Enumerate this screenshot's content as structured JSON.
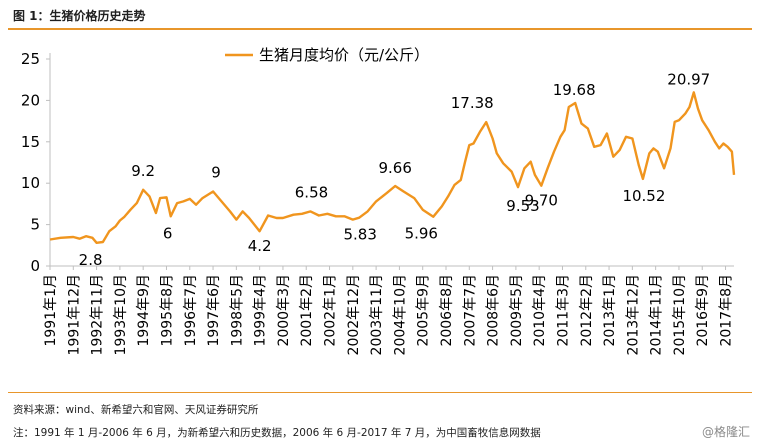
{
  "figure_title": "图 1：生猪价格历史走势",
  "footer": {
    "source": "资料来源：wind、新希望六和官网、天风证券研究所",
    "note": "注：1991 年 1 月-2006 年 6 月，为新希望六和历史数据，2006 年 6 月-2017 年 7 月，为中国畜牧信息网数据",
    "watermark": "格隆汇"
  },
  "colors": {
    "series": "#f0951e",
    "rule": "#e8962b",
    "axis": "#bfbfbf"
  },
  "chart_data": {
    "type": "line",
    "title": "",
    "xlabel": "",
    "ylabel": "",
    "ylim": [
      0,
      25
    ],
    "yticks": [
      0,
      5,
      10,
      15,
      20,
      25
    ],
    "grid": false,
    "legend_position": "top-center",
    "x_tick_labels": [
      "1991年1月",
      "1991年12月",
      "1992年11月",
      "1993年10月",
      "1994年9月",
      "1995年8月",
      "1996年7月",
      "1997年6月",
      "1998年5月",
      "1999年4月",
      "2000年3月",
      "2001年2月",
      "2002年1月",
      "2002年12月",
      "2003年11月",
      "2004年10月",
      "2005年9月",
      "2006年8月",
      "2007年7月",
      "2008年6月",
      "2009年5月",
      "2010年4月",
      "2011年3月",
      "2012年2月",
      "2013年1月",
      "2013年12月",
      "2014年11月",
      "2015年10月",
      "2016年9月",
      "2017年8月"
    ],
    "series": [
      {
        "name": "生猪月度均价（元/公斤）",
        "points": [
          [
            "1991-01",
            3.2
          ],
          [
            "1991-06",
            3.4
          ],
          [
            "1991-12",
            3.5
          ],
          [
            "1992-03",
            3.3
          ],
          [
            "1992-06",
            3.6
          ],
          [
            "1992-09",
            3.4
          ],
          [
            "1992-11",
            2.8
          ],
          [
            "1993-02",
            2.9
          ],
          [
            "1993-05",
            4.2
          ],
          [
            "1993-08",
            4.8
          ],
          [
            "1993-10",
            5.5
          ],
          [
            "1993-12",
            5.9
          ],
          [
            "1994-03",
            6.8
          ],
          [
            "1994-06",
            7.6
          ],
          [
            "1994-09",
            9.2
          ],
          [
            "1994-12",
            8.4
          ],
          [
            "1995-03",
            6.4
          ],
          [
            "1995-05",
            8.2
          ],
          [
            "1995-08",
            8.3
          ],
          [
            "1995-10",
            6.0
          ],
          [
            "1996-01",
            7.6
          ],
          [
            "1996-04",
            7.8
          ],
          [
            "1996-07",
            8.1
          ],
          [
            "1996-10",
            7.4
          ],
          [
            "1997-01",
            8.2
          ],
          [
            "1997-06",
            9.0
          ],
          [
            "1997-10",
            7.8
          ],
          [
            "1998-02",
            6.6
          ],
          [
            "1998-05",
            5.6
          ],
          [
            "1998-08",
            6.6
          ],
          [
            "1998-11",
            5.8
          ],
          [
            "1999-04",
            4.2
          ],
          [
            "1999-08",
            6.1
          ],
          [
            "1999-12",
            5.8
          ],
          [
            "2000-03",
            5.8
          ],
          [
            "2000-08",
            6.2
          ],
          [
            "2000-12",
            6.3
          ],
          [
            "2001-04",
            6.6
          ],
          [
            "2001-08",
            6.1
          ],
          [
            "2001-12",
            6.3
          ],
          [
            "2002-04",
            6.0
          ],
          [
            "2002-08",
            6.0
          ],
          [
            "2002-12",
            5.6
          ],
          [
            "2003-03",
            5.83
          ],
          [
            "2003-07",
            6.6
          ],
          [
            "2003-11",
            7.8
          ],
          [
            "2004-04",
            8.8
          ],
          [
            "2004-08",
            9.66
          ],
          [
            "2004-12",
            9.0
          ],
          [
            "2005-05",
            8.2
          ],
          [
            "2005-09",
            6.8
          ],
          [
            "2006-02",
            5.96
          ],
          [
            "2006-06",
            7.2
          ],
          [
            "2006-09",
            8.4
          ],
          [
            "2006-12",
            9.8
          ],
          [
            "2007-03",
            10.4
          ],
          [
            "2007-05",
            12.6
          ],
          [
            "2007-07",
            14.6
          ],
          [
            "2007-09",
            14.8
          ],
          [
            "2007-12",
            16.2
          ],
          [
            "2008-03",
            17.38
          ],
          [
            "2008-06",
            15.4
          ],
          [
            "2008-08",
            13.6
          ],
          [
            "2008-11",
            12.4
          ],
          [
            "2009-03",
            11.4
          ],
          [
            "2009-06",
            9.53
          ],
          [
            "2009-09",
            11.8
          ],
          [
            "2009-12",
            12.6
          ],
          [
            "2010-02",
            11.0
          ],
          [
            "2010-05",
            9.7
          ],
          [
            "2010-08",
            11.8
          ],
          [
            "2010-11",
            13.8
          ],
          [
            "2011-02",
            15.6
          ],
          [
            "2011-04",
            16.4
          ],
          [
            "2011-06",
            19.2
          ],
          [
            "2011-09",
            19.68
          ],
          [
            "2011-12",
            17.2
          ],
          [
            "2012-03",
            16.6
          ],
          [
            "2012-06",
            14.4
          ],
          [
            "2012-09",
            14.6
          ],
          [
            "2012-12",
            16.0
          ],
          [
            "2013-03",
            13.2
          ],
          [
            "2013-06",
            14.0
          ],
          [
            "2013-09",
            15.6
          ],
          [
            "2013-12",
            15.4
          ],
          [
            "2014-03",
            12.2
          ],
          [
            "2014-05",
            10.52
          ],
          [
            "2014-08",
            13.6
          ],
          [
            "2014-10",
            14.2
          ],
          [
            "2014-12",
            13.8
          ],
          [
            "2015-03",
            11.8
          ],
          [
            "2015-06",
            14.2
          ],
          [
            "2015-08",
            17.4
          ],
          [
            "2015-10",
            17.6
          ],
          [
            "2016-01",
            18.4
          ],
          [
            "2016-03",
            19.2
          ],
          [
            "2016-05",
            20.97
          ],
          [
            "2016-07",
            19.0
          ],
          [
            "2016-09",
            17.6
          ],
          [
            "2016-12",
            16.4
          ],
          [
            "2017-03",
            15.0
          ],
          [
            "2017-05",
            14.2
          ],
          [
            "2017-07",
            14.8
          ],
          [
            "2017-09",
            14.4
          ],
          [
            "2017-11",
            13.8
          ],
          [
            "2017-12",
            11.0
          ]
        ]
      }
    ],
    "annotations": [
      {
        "text": "9.2",
        "x": "1994-09",
        "y": 9.2
      },
      {
        "text": "9",
        "x": "1997-06",
        "y": 9.0
      },
      {
        "text": "6",
        "x": "1995-10",
        "y": 6.0
      },
      {
        "text": "2.8",
        "x": "1992-11",
        "y": 2.8
      },
      {
        "text": "4.2",
        "x": "1999-04",
        "y": 4.2
      },
      {
        "text": "6.58",
        "x": "2001-04",
        "y": 6.6
      },
      {
        "text": "5.83",
        "x": "2003-03",
        "y": 5.83
      },
      {
        "text": "9.66",
        "x": "2004-08",
        "y": 9.66
      },
      {
        "text": "5.96",
        "x": "2006-02",
        "y": 5.96
      },
      {
        "text": "17.38",
        "x": "2008-03",
        "y": 17.38
      },
      {
        "text": "9.53",
        "x": "2009-06",
        "y": 9.53
      },
      {
        "text": "9.70",
        "x": "2010-05",
        "y": 9.7
      },
      {
        "text": "19.68",
        "x": "2011-09",
        "y": 19.68
      },
      {
        "text": "10.52",
        "x": "2014-05",
        "y": 10.52
      },
      {
        "text": "20.97",
        "x": "2016-05",
        "y": 20.97
      }
    ]
  }
}
